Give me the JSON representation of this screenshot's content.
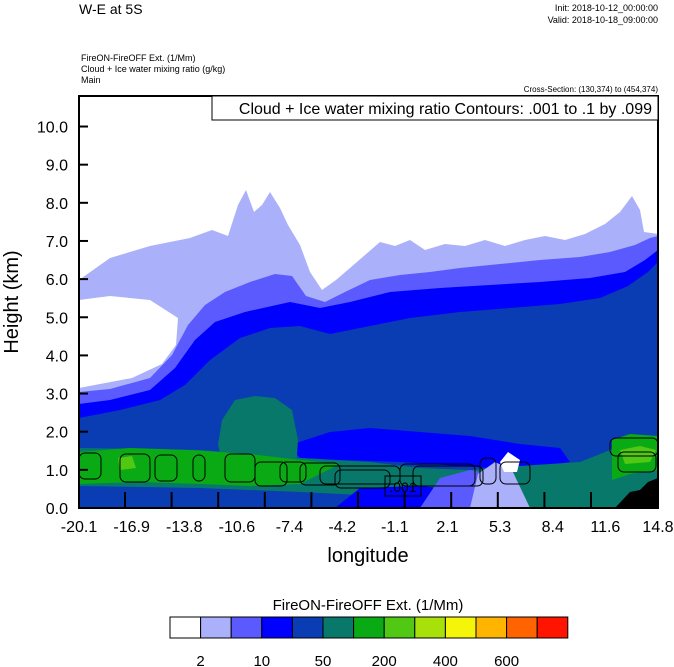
{
  "header": {
    "title": "W-E at 5S",
    "init": "Init: 2018-10-12_00:00:00",
    "valid": "Valid: 2018-10-18_09:00:00",
    "field1": "FireON-FireOFF Ext.   (1/Mm)",
    "field2": "Cloud + Ice water mixing ratio   (g/kg)",
    "field3": "Main",
    "cross_section": "Cross-Section: (130,374) to (454,374)"
  },
  "chart_data": {
    "type": "heatmap",
    "title": "Cloud + Ice water mixing ratio Contours: .001 to .1 by .099",
    "xlabel": "longitude",
    "ylabel": "Height (km)",
    "xlim": [
      -20.1,
      14.8
    ],
    "ylim": [
      0,
      10.8
    ],
    "xticks": [
      "-20.1",
      "-16.9",
      "-13.8",
      "-10.6",
      "-7.4",
      "-4.2",
      "-1.1",
      "2.1",
      "5.3",
      "8.4",
      "11.6",
      "14.8"
    ],
    "yticks": [
      "0.0",
      "1.0",
      "2.0",
      "3.0",
      "4.0",
      "5.0",
      "6.0",
      "7.0",
      "8.0",
      "9.0",
      "10.0"
    ],
    "contour_label": ".001",
    "colorbar": {
      "title": "FireON-FireOFF Ext.  (1/Mm)",
      "colors": [
        "#ffffff",
        "#aab0fa",
        "#5a5aff",
        "#0000ff",
        "#0a3cb4",
        "#07786a",
        "#0aaa14",
        "#50c814",
        "#a8e10a",
        "#f5f50a",
        "#ffb400",
        "#ff6400",
        "#ff1400"
      ],
      "labels": [
        "2",
        "10",
        "50",
        "200",
        "400",
        "600"
      ]
    }
  }
}
